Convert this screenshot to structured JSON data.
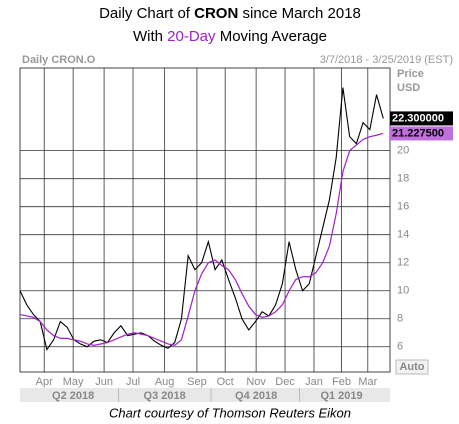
{
  "chart_data": {
    "type": "line",
    "title": [
      "Daily Chart of ",
      "CRON",
      " since March 2018"
    ],
    "subtitle": [
      "With ",
      "20-Day",
      " Moving Average"
    ],
    "instrument": "Daily CRON.O",
    "date_range": "3/7/2018 - 3/25/2019 (EST)",
    "y_label": [
      "Price",
      "USD"
    ],
    "auto_button": "Auto",
    "footer": "Chart courtesy of Thomson Reuters Eikon",
    "x": [
      0,
      1,
      2,
      3,
      4,
      5,
      6,
      7,
      8,
      9,
      10,
      11,
      12,
      13,
      14,
      15,
      16,
      17,
      18,
      19,
      20,
      21,
      22,
      23,
      24,
      25,
      26,
      27,
      28,
      29,
      30,
      31,
      32,
      33,
      34,
      35,
      36,
      37,
      38,
      39,
      40,
      41,
      42,
      43,
      44,
      45,
      46,
      47,
      48,
      49,
      50,
      51,
      52,
      53,
      54
    ],
    "xlim": [
      0,
      55
    ],
    "xticks": [
      {
        "value": 3.6,
        "label": "Apr"
      },
      {
        "value": 7.9,
        "label": "May"
      },
      {
        "value": 12.5,
        "label": "Jun"
      },
      {
        "value": 16.8,
        "label": "Jul"
      },
      {
        "value": 21.5,
        "label": "Aug"
      },
      {
        "value": 26.3,
        "label": "Sep"
      },
      {
        "value": 30.5,
        "label": "Oct"
      },
      {
        "value": 35.1,
        "label": "Nov"
      },
      {
        "value": 39.4,
        "label": "Dec"
      },
      {
        "value": 43.7,
        "label": "Jan"
      },
      {
        "value": 47.8,
        "label": "Feb"
      },
      {
        "value": 51.7,
        "label": "Mar"
      }
    ],
    "quarters": [
      "Q2 2018",
      "Q3 2018",
      "Q4 2018",
      "Q1 2019"
    ],
    "ylim": [
      4.2,
      25.9
    ],
    "yticks": [
      6,
      8,
      10,
      12,
      14,
      16,
      18,
      20
    ],
    "grid": true,
    "series": [
      {
        "name": "CRON",
        "color": "#000000",
        "values": [
          10.0,
          9.0,
          8.3,
          7.8,
          5.8,
          6.5,
          7.8,
          7.4,
          6.5,
          6.2,
          6.0,
          6.4,
          6.5,
          6.3,
          7.0,
          7.5,
          6.8,
          6.9,
          7.0,
          6.8,
          6.4,
          6.1,
          5.9,
          6.3,
          8.0,
          12.5,
          11.5,
          12.0,
          13.5,
          11.5,
          12.2,
          10.8,
          9.5,
          8.0,
          7.2,
          7.8,
          8.5,
          8.2,
          9.0,
          10.5,
          13.5,
          11.5,
          10.0,
          10.5,
          12.5,
          14.5,
          16.5,
          19.5,
          24.5,
          21.0,
          20.5,
          22.0,
          21.5,
          24.0,
          22.3
        ],
        "value_labels": [
          null,
          null,
          null,
          null,
          null,
          null,
          null,
          null,
          null,
          null,
          null,
          null,
          null,
          null,
          null,
          null,
          null,
          null,
          null,
          null,
          null,
          null,
          null,
          null,
          null,
          null,
          null,
          null,
          null,
          null,
          null,
          null,
          null,
          null,
          null,
          null,
          null,
          null,
          null,
          null,
          null,
          null,
          null,
          null,
          null,
          null,
          null,
          null,
          null,
          null,
          null,
          null,
          null,
          null,
          "22.300000"
        ]
      },
      {
        "name": "20-Day Moving Average",
        "color": "#a020c8",
        "values": [
          8.3,
          8.2,
          8.1,
          7.8,
          7.2,
          6.8,
          6.6,
          6.6,
          6.5,
          6.4,
          6.2,
          6.1,
          6.2,
          6.3,
          6.5,
          6.7,
          6.9,
          7.0,
          6.9,
          6.8,
          6.6,
          6.4,
          6.2,
          6.1,
          6.5,
          8.2,
          10.0,
          11.2,
          12.0,
          12.2,
          11.8,
          11.5,
          10.8,
          9.8,
          8.9,
          8.3,
          8.1,
          8.2,
          8.5,
          9.0,
          10.0,
          10.8,
          11.0,
          11.0,
          11.3,
          12.0,
          13.2,
          15.5,
          18.5,
          20.0,
          20.4,
          20.8,
          21.0,
          21.1,
          21.2275
        ],
        "value_labels": [
          null,
          null,
          null,
          null,
          null,
          null,
          null,
          null,
          null,
          null,
          null,
          null,
          null,
          null,
          null,
          null,
          null,
          null,
          null,
          null,
          null,
          null,
          null,
          null,
          null,
          null,
          null,
          null,
          null,
          null,
          null,
          null,
          null,
          null,
          null,
          null,
          null,
          null,
          null,
          null,
          null,
          null,
          null,
          null,
          null,
          null,
          null,
          null,
          null,
          null,
          null,
          null,
          null,
          null,
          "21.227500"
        ]
      }
    ]
  }
}
